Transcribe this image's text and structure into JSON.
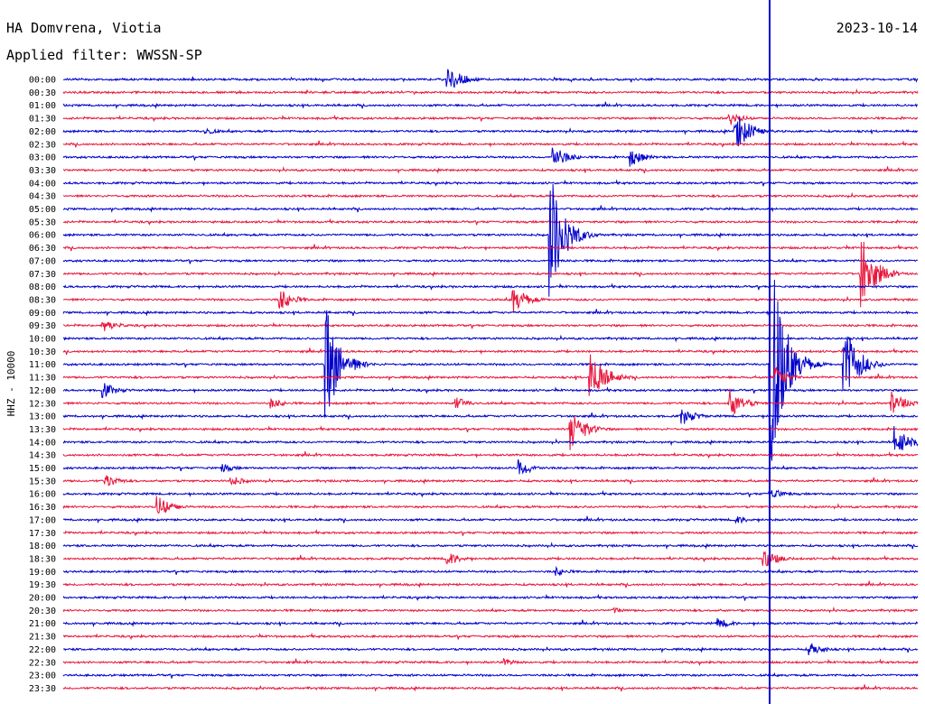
{
  "header": {
    "station": "HA Domvrena, Viotia",
    "filter": "Applied filter: WWSSN-SP",
    "date": "2023-10-14",
    "channel": "HHZ - 10000"
  },
  "chart_data": {
    "type": "helicorder",
    "title": "HA Domvrena, Viotia",
    "subtitle": "Applied filter: WWSSN-SP",
    "date": "2023-10-14",
    "ylabel": "HHZ - 10000",
    "trace_colors": [
      "#0000cc",
      "#e8163c"
    ],
    "row_labels": [
      "00:00",
      "00:30",
      "01:00",
      "01:30",
      "02:00",
      "02:30",
      "03:00",
      "03:30",
      "04:00",
      "04:30",
      "05:00",
      "05:30",
      "06:00",
      "06:30",
      "07:00",
      "07:30",
      "08:00",
      "08:30",
      "09:00",
      "09:30",
      "10:00",
      "10:30",
      "11:00",
      "11:30",
      "12:00",
      "12:30",
      "13:00",
      "13:30",
      "14:00",
      "14:30",
      "15:00",
      "15:30",
      "16:00",
      "16:30",
      "17:00",
      "17:30",
      "18:00",
      "18:30",
      "19:00",
      "19:30",
      "20:00",
      "20:30",
      "21:00",
      "21:30",
      "22:00",
      "22:30",
      "23:00",
      "23:30"
    ],
    "events": [
      {
        "row": 0,
        "minute": 13.5,
        "amplitude": 18
      },
      {
        "row": 4,
        "minute": 5.0,
        "amplitude": 4
      },
      {
        "row": 3,
        "minute": 23.4,
        "amplitude": 8
      },
      {
        "row": 4,
        "minute": 23.6,
        "amplitude": 24
      },
      {
        "row": 6,
        "minute": 17.2,
        "amplitude": 14
      },
      {
        "row": 6,
        "minute": 19.9,
        "amplitude": 11
      },
      {
        "row": 12,
        "minute": 17.1,
        "amplitude": 75
      },
      {
        "row": 15,
        "minute": 28.0,
        "amplitude": 45
      },
      {
        "row": 17,
        "minute": 7.6,
        "amplitude": 13
      },
      {
        "row": 17,
        "minute": 15.8,
        "amplitude": 16
      },
      {
        "row": 19,
        "minute": 1.4,
        "amplitude": 8
      },
      {
        "row": 22,
        "minute": 9.2,
        "amplitude": 70
      },
      {
        "row": 22,
        "minute": 24.8,
        "amplitude": 145
      },
      {
        "row": 22,
        "minute": 27.4,
        "amplitude": 50
      },
      {
        "row": 23,
        "minute": 18.5,
        "amplitude": 35
      },
      {
        "row": 23,
        "minute": 25.0,
        "amplitude": 12
      },
      {
        "row": 24,
        "minute": 1.4,
        "amplitude": 9
      },
      {
        "row": 25,
        "minute": 7.3,
        "amplitude": 6
      },
      {
        "row": 25,
        "minute": 13.8,
        "amplitude": 7
      },
      {
        "row": 25,
        "minute": 23.4,
        "amplitude": 17
      },
      {
        "row": 25,
        "minute": 29.1,
        "amplitude": 13
      },
      {
        "row": 27,
        "minute": 17.8,
        "amplitude": 25
      },
      {
        "row": 26,
        "minute": 21.7,
        "amplitude": 11
      },
      {
        "row": 28,
        "minute": 29.2,
        "amplitude": 18
      },
      {
        "row": 30,
        "minute": 5.6,
        "amplitude": 5
      },
      {
        "row": 30,
        "minute": 16.0,
        "amplitude": 10
      },
      {
        "row": 31,
        "minute": 1.5,
        "amplitude": 8
      },
      {
        "row": 31,
        "minute": 5.9,
        "amplitude": 6
      },
      {
        "row": 32,
        "minute": 24.8,
        "amplitude": 8
      },
      {
        "row": 33,
        "minute": 3.3,
        "amplitude": 14
      },
      {
        "row": 34,
        "minute": 23.6,
        "amplitude": 5
      },
      {
        "row": 37,
        "minute": 13.5,
        "amplitude": 8
      },
      {
        "row": 37,
        "minute": 24.6,
        "amplitude": 12
      },
      {
        "row": 38,
        "minute": 17.3,
        "amplitude": 5
      },
      {
        "row": 41,
        "minute": 19.3,
        "amplitude": 4
      },
      {
        "row": 42,
        "minute": 23.0,
        "amplitude": 6
      },
      {
        "row": 44,
        "minute": 26.2,
        "amplitude": 8
      },
      {
        "row": 45,
        "minute": 15.5,
        "amplitude": 4
      }
    ]
  }
}
